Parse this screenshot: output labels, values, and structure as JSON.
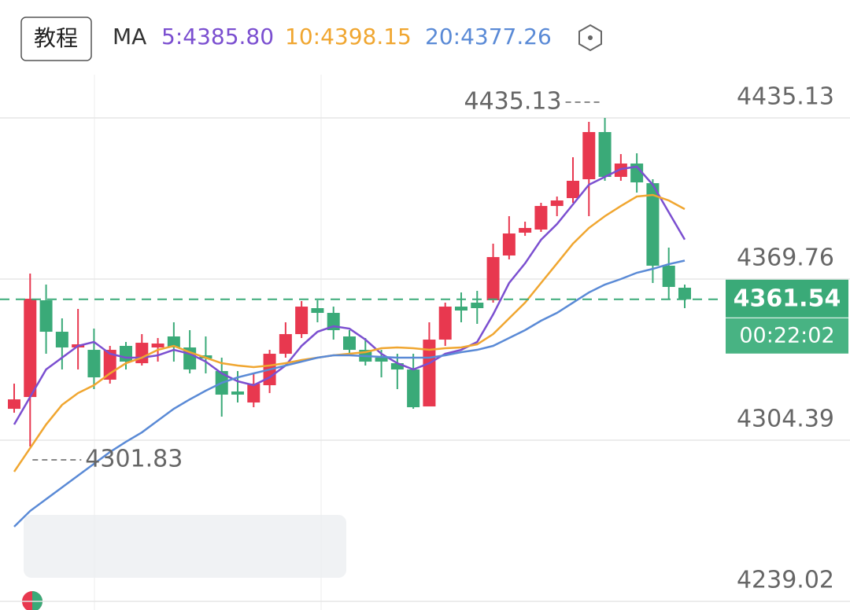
{
  "chart_data": {
    "type": "candlestick",
    "button": "教程",
    "ma_title": "MA",
    "up_color": "#e8384f",
    "down_color": "#3aaa78",
    "open": [
      4317.13,
      4321.92,
      4361.15,
      4348.39,
      4342.01,
      4341.05,
      4328.94,
      4342.65,
      4335.63,
      4342.01,
      4346.48,
      4342.01,
      4338.82,
      4332.44,
      4324.15,
      4319.69,
      4326.7,
      4339.46,
      4347.43,
      4357.96,
      4356.04,
      4346.48,
      4341.05,
      4337.87,
      4335.63,
      4333.08,
      4318.09,
      4345.2,
      4358.59,
      4360.19,
      4361.15,
      4379.32,
      4388.57,
      4389.85,
      4399.41,
      4402.6,
      4410.26,
      4429.39,
      4411.21,
      4416.63,
      4408.66,
      4375.18,
      4366.25
    ],
    "high": [
      4327.34,
      4371.99,
      4367.52,
      4353.81,
      4357.64,
      4349.66,
      4342.65,
      4344.24,
      4347.43,
      4345.84,
      4352.22,
      4349.03,
      4346.48,
      4337.87,
      4332.44,
      4331.49,
      4341.05,
      4352.22,
      4360.83,
      4361.15,
      4358.59,
      4349.03,
      4345.84,
      4341.05,
      4339.46,
      4339.46,
      4352.22,
      4360.19,
      4364.33,
      4364.97,
      4384.11,
      4395.27,
      4393.04,
      4400.69,
      4403.24,
      4419.18,
      4433.54,
      4435.13,
      4420.46,
      4420.78,
      4410.26,
      4382.51,
      4367.52
    ],
    "low": [
      4315.54,
      4301.83,
      4339.46,
      4333.08,
      4333.08,
      4325.11,
      4327.34,
      4333.08,
      4334.68,
      4336.27,
      4336.27,
      4331.49,
      4331.49,
      4313.95,
      4319.69,
      4317.77,
      4323.51,
      4337.87,
      4345.84,
      4352.22,
      4345.2,
      4339.46,
      4334.68,
      4329.89,
      4325.11,
      4317.13,
      4318.09,
      4342.65,
      4352.22,
      4351.58,
      4360.19,
      4377.73,
      4387.29,
      4388.89,
      4395.27,
      4400.69,
      4395.27,
      4409.62,
      4409.62,
      4404.83,
      4368.16,
      4361.78,
      4357.96
    ],
    "close": [
      4320.96,
      4361.78,
      4348.39,
      4342.01,
      4343.29,
      4329.89,
      4341.05,
      4336.27,
      4343.92,
      4343.61,
      4342.01,
      4333.08,
      4337.55,
      4322.88,
      4322.88,
      4327.34,
      4339.46,
      4347.43,
      4358.59,
      4356.04,
      4349.03,
      4341.05,
      4336.27,
      4336.27,
      4333.08,
      4317.77,
      4345.2,
      4358.59,
      4357.0,
      4357.96,
      4378.68,
      4388.25,
      4390.48,
      4399.41,
      4401.65,
      4409.62,
      4429.39,
      4411.21,
      4416.63,
      4408.98,
      4375.18,
      4366.57,
      4361.54
    ],
    "series": [
      {
        "name": "5:4385.80",
        "color": "#7b4fd0",
        "values": [
          4310.76,
          4321.92,
          4333.08,
          4337.87,
          4342.65,
          4344.24,
          4339.46,
          4337.87,
          4337.87,
          4338.82,
          4341.05,
          4339.46,
          4336.27,
          4331.49,
          4328.3,
          4326.7,
          4329.89,
          4334.68,
          4342.65,
          4348.39,
          4350.62,
          4349.66,
          4345.2,
          4339.46,
          4335.63,
          4333.08,
          4335.63,
          4339.46,
          4341.05,
          4344.24,
          4355.4,
          4368.16,
          4376.13,
          4385.7,
          4392.08,
          4400.05,
          4408.02,
          4411.21,
          4414.4,
          4415.36,
          4408.02,
          4396.86,
          4385.8
        ]
      },
      {
        "name": "10:4398.15",
        "color": "#f0a630",
        "values": [
          4291.63,
          4301.19,
          4310.76,
          4318.73,
          4323.51,
          4326.7,
          4331.49,
          4335.63,
          4337.87,
          4341.05,
          4342.65,
          4340.1,
          4337.87,
          4335.63,
          4334.68,
          4334.04,
          4334.68,
          4335.63,
          4336.91,
          4337.87,
          4338.82,
          4339.46,
          4340.1,
          4341.69,
          4342.01,
          4341.69,
          4341.05,
          4341.69,
          4342.01,
          4343.29,
          4347.43,
          4353.81,
          4360.19,
          4368.16,
          4376.13,
          4384.11,
          4390.48,
          4395.27,
          4399.41,
          4403.24,
          4403.88,
          4401.65,
          4398.15
        ]
      },
      {
        "name": "20:4377.26",
        "color": "#5a8ad6",
        "values": [
          4269.3,
          4275.68,
          4280.46,
          4285.25,
          4290.03,
          4294.81,
          4299.6,
          4303.74,
          4307.57,
          4312.35,
          4317.13,
          4320.96,
          4324.47,
          4327.66,
          4329.89,
          4331.49,
          4333.08,
          4334.68,
          4336.27,
          4337.87,
          4338.82,
          4338.82,
          4338.5,
          4338.18,
          4337.87,
          4337.87,
          4337.87,
          4338.82,
          4340.1,
          4341.05,
          4342.65,
          4345.84,
          4349.03,
          4352.85,
          4356.04,
          4360.19,
          4364.33,
          4367.52,
          4369.76,
          4372.31,
          4373.9,
          4375.81,
          4377.26
        ]
      }
    ],
    "ylim": [
      4239.02,
      4452.67
    ],
    "yticks": [
      4239.02,
      4304.39,
      4369.76,
      4435.13
    ],
    "grid": true,
    "max_label": 4435.13,
    "min_label": 4301.83,
    "last_price": 4361.54,
    "countdown": "00:22:02"
  }
}
